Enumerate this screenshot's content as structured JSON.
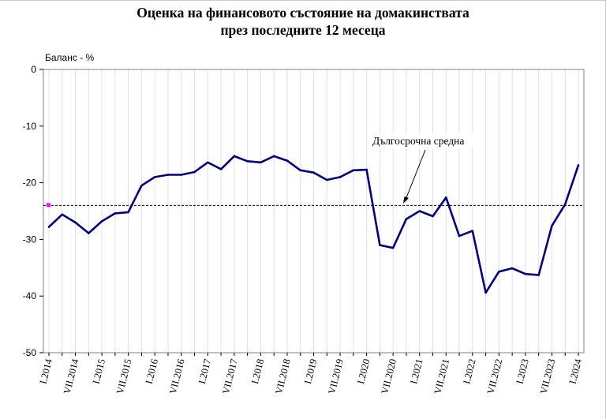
{
  "colors": {
    "series": "#000080",
    "average_line": "#000000",
    "average_marker": "#ff00ff",
    "grid": "#e0e0e0"
  },
  "chart_data": {
    "type": "line",
    "title_line1": "Оценка на финансовото състояние на домакинствата",
    "title_line2": "през последните 12 месеца",
    "ylabel": "Баланс - %",
    "ylim": [
      -50,
      0
    ],
    "yticks": [
      0,
      -10,
      -20,
      -30,
      -40,
      -50
    ],
    "grid": "vertical",
    "x_tick_labels": [
      "I.2014",
      "VII.2014",
      "I.2015",
      "VII.2015",
      "I.2016",
      "VII.2016",
      "I.2017",
      "VII.2017",
      "I.2018",
      "VII.2018",
      "I.2019",
      "VII.2019",
      "I.2020",
      "VII.2020",
      "I.2021",
      "VII.2021",
      "I.2022",
      "VII.2022",
      "I.2023",
      "VII.2023",
      "I.2024"
    ],
    "series": [
      {
        "values": [
          -27.8,
          -25.6,
          -27.0,
          -28.9,
          -26.8,
          -25.4,
          -25.2,
          -20.5,
          -19.0,
          -18.6,
          -18.6,
          -18.1,
          -16.4,
          -17.6,
          -15.3,
          -16.2,
          -16.4,
          -15.3,
          -16.1,
          -17.8,
          -18.2,
          -19.5,
          -19.0,
          -17.8,
          -17.7,
          -31.0,
          -31.5,
          -26.4,
          -25.0,
          -25.9,
          -22.6,
          -29.4,
          -28.5,
          -39.4,
          -35.7,
          -35.1,
          -36.1,
          -36.3,
          -27.6,
          -23.8,
          -16.9
        ]
      }
    ],
    "long_term_average": {
      "value": -24.0,
      "label": "Дългосрочна средна"
    }
  }
}
